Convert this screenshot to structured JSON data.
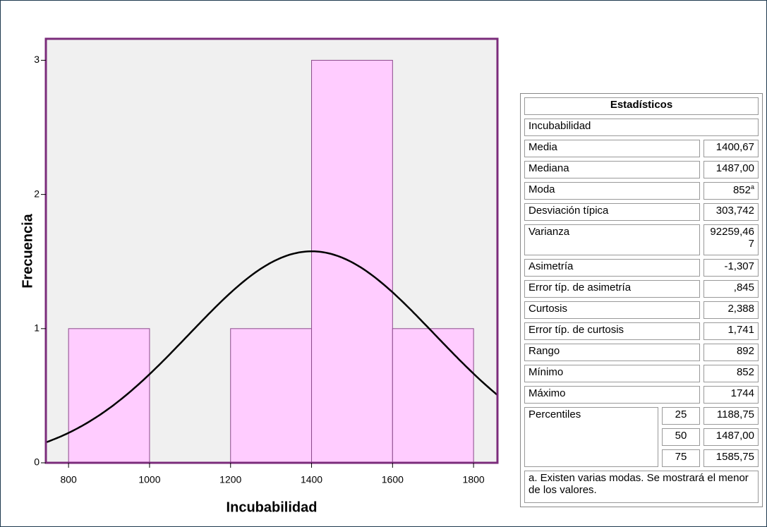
{
  "chart_data": {
    "type": "histogram",
    "bins": [
      800,
      1000,
      1200,
      1400,
      1600,
      1800
    ],
    "counts": [
      1,
      0,
      1,
      3,
      1
    ],
    "x_label": "Incubabilidad",
    "y_label": "Frecuencia",
    "xlim": [
      744,
      1859
    ],
    "ylim": [
      0,
      3.16
    ],
    "xticks": [
      800,
      1000,
      1200,
      1400,
      1600,
      1800
    ],
    "yticks": [
      0,
      1,
      2,
      3
    ],
    "color": "#ffccff",
    "edge_color": "#8b4a8b",
    "background": "#f0f0f0",
    "frame_color": "#7b2c7b",
    "normal_curve": true
  },
  "table": {
    "title": "Estadísticos",
    "variable": "Incubabilidad",
    "rows": [
      {
        "label": "Media",
        "value": "1400,67"
      },
      {
        "label": "Mediana",
        "value": "1487,00"
      },
      {
        "label": "Moda",
        "value": "852",
        "note": "a"
      },
      {
        "label": "Desviación típica",
        "value": "303,742"
      },
      {
        "label": "Varianza",
        "value": "92259,467"
      },
      {
        "label": "Asimetría",
        "value": "-1,307"
      },
      {
        "label": "Error típ. de asimetría",
        "value": ",845"
      },
      {
        "label": "Curtosis",
        "value": "2,388"
      },
      {
        "label": "Error típ. de curtosis",
        "value": "1,741"
      },
      {
        "label": "Rango",
        "value": "892"
      },
      {
        "label": "Mínimo",
        "value": "852"
      },
      {
        "label": "Máximo",
        "value": "1744"
      }
    ],
    "percentiles": {
      "label": "Percentiles",
      "items": [
        {
          "p": "25",
          "value": "1188,75"
        },
        {
          "p": "50",
          "value": "1487,00"
        },
        {
          "p": "75",
          "value": "1585,75"
        }
      ]
    },
    "footnote": "a. Existen varias modas. Se mostrará el menor de los valores."
  }
}
